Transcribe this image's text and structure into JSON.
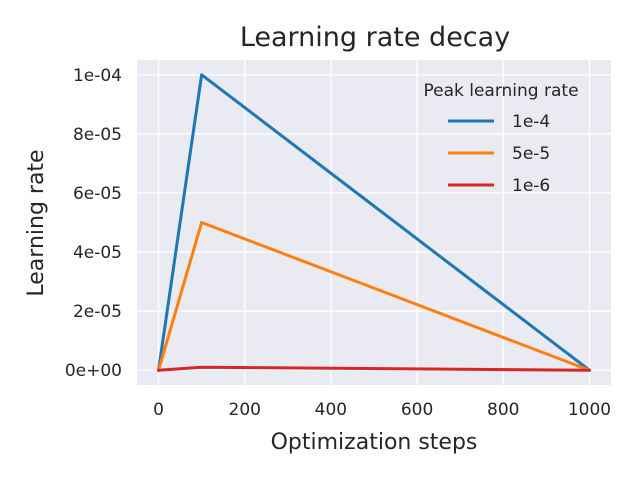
{
  "chart_data": {
    "type": "line",
    "title": "Learning rate decay",
    "xlabel": "Optimization steps",
    "ylabel": "Learning rate",
    "xlim": [
      -50,
      1050
    ],
    "ylim": [
      -5e-06,
      0.000105
    ],
    "xticks": [
      0,
      200,
      400,
      600,
      800,
      1000
    ],
    "xtick_labels": [
      "0",
      "200",
      "400",
      "600",
      "800",
      "1000"
    ],
    "yticks": [
      0,
      2e-05,
      4e-05,
      6e-05,
      8e-05,
      0.0001
    ],
    "ytick_labels": [
      "0e+00",
      "2e-05",
      "4e-05",
      "6e-05",
      "8e-05",
      "1e-04"
    ],
    "grid": true,
    "legend": {
      "title": "Peak learning rate",
      "placement": "top-right"
    },
    "series": [
      {
        "name": "1e-4",
        "color": "#1f77b4",
        "x": [
          0,
          100,
          1000
        ],
        "y": [
          0,
          0.0001,
          0
        ]
      },
      {
        "name": "5e-5",
        "color": "#ff7f0e",
        "x": [
          0,
          100,
          1000
        ],
        "y": [
          0,
          5e-05,
          0
        ]
      },
      {
        "name": "1e-6",
        "color": "#d62728",
        "x": [
          0,
          100,
          1000
        ],
        "y": [
          0,
          1e-06,
          0
        ]
      }
    ],
    "colors": {
      "background": "#eaeaf2",
      "grid": "#ffffff",
      "text": "#262626"
    }
  }
}
